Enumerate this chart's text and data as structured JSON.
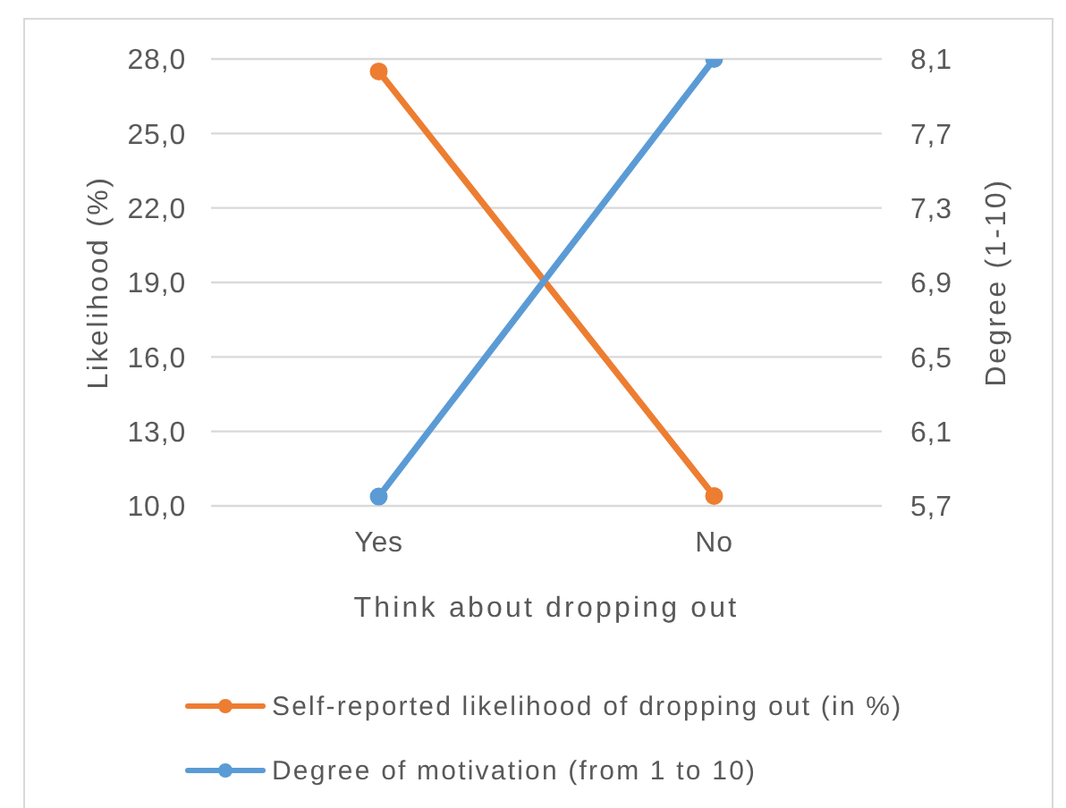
{
  "chart_data": {
    "type": "line",
    "xlabel": "Think about dropping out",
    "ylabel": "Likelihood (%)",
    "y2label": "Degree (1-10)",
    "categories": [
      "Yes",
      "No"
    ],
    "series": [
      {
        "name": "Self-reported likelihood of dropping out (in %)",
        "color": "#ed7d31",
        "values": [
          27.5,
          10.4
        ]
      },
      {
        "name": "Degree of motivation (from 1 to 10)",
        "color": "#5b9bd5",
        "values": [
          5.75,
          8.1
        ],
        "axis": "y2"
      }
    ],
    "ylim": [
      10,
      28
    ],
    "yticks": [
      {
        "value": 10,
        "label": "10,0"
      },
      {
        "value": 13,
        "label": "13,0"
      },
      {
        "value": 16,
        "label": "16,0"
      },
      {
        "value": 19,
        "label": "19,0"
      },
      {
        "value": 22,
        "label": "22,0"
      },
      {
        "value": 25,
        "label": "25,0"
      },
      {
        "value": 28,
        "label": "28,0"
      }
    ],
    "y2lim": [
      5.7,
      8.1
    ],
    "y2ticks": [
      {
        "value": 5.7,
        "label": "5,7"
      },
      {
        "value": 6.1,
        "label": "6,1"
      },
      {
        "value": 6.5,
        "label": "6,5"
      },
      {
        "value": 6.9,
        "label": "6,9"
      },
      {
        "value": 7.3,
        "label": "7,3"
      },
      {
        "value": 7.7,
        "label": "7,7"
      },
      {
        "value": 8.1,
        "label": "8,1"
      }
    ],
    "grid": "y",
    "legend": "bottom",
    "marker": "circle",
    "line_style": "solid"
  }
}
